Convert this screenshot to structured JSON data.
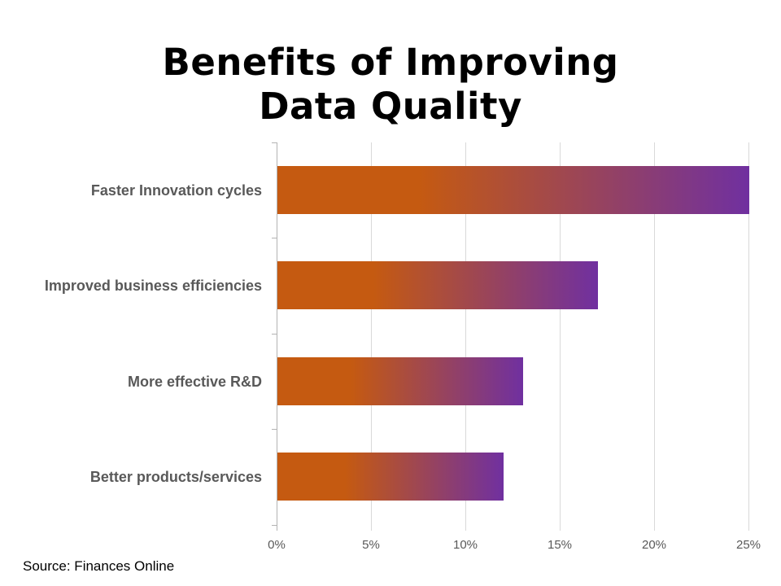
{
  "title": {
    "line1": "Benefits of Improving",
    "line2": "Data Quality"
  },
  "source": "Source: Finances Online",
  "chart_data": {
    "type": "bar",
    "orientation": "horizontal",
    "title": "Benefits of Improving Data Quality",
    "categories": [
      "Faster Innovation cycles",
      "Improved business efficiencies",
      "More effective R&D",
      "Better products/services"
    ],
    "values": [
      25,
      17,
      13,
      12
    ],
    "unit": "%",
    "xlabel": "",
    "ylabel": "",
    "xlim": [
      0,
      25
    ],
    "x_tick_values": [
      0,
      5,
      10,
      15,
      20,
      25
    ],
    "x_tick_labels": [
      "0%",
      "5%",
      "10%",
      "15%",
      "20%",
      "25%"
    ],
    "grid": true,
    "legend": false,
    "colors": {
      "bar_gradient_start": "#c55a11",
      "bar_gradient_end": "#7030a0",
      "gridline": "#d9d9d9",
      "axis_line": "#b3b3b3",
      "category_label": "#595959",
      "tick_label": "#595959",
      "title": "#000000"
    }
  }
}
